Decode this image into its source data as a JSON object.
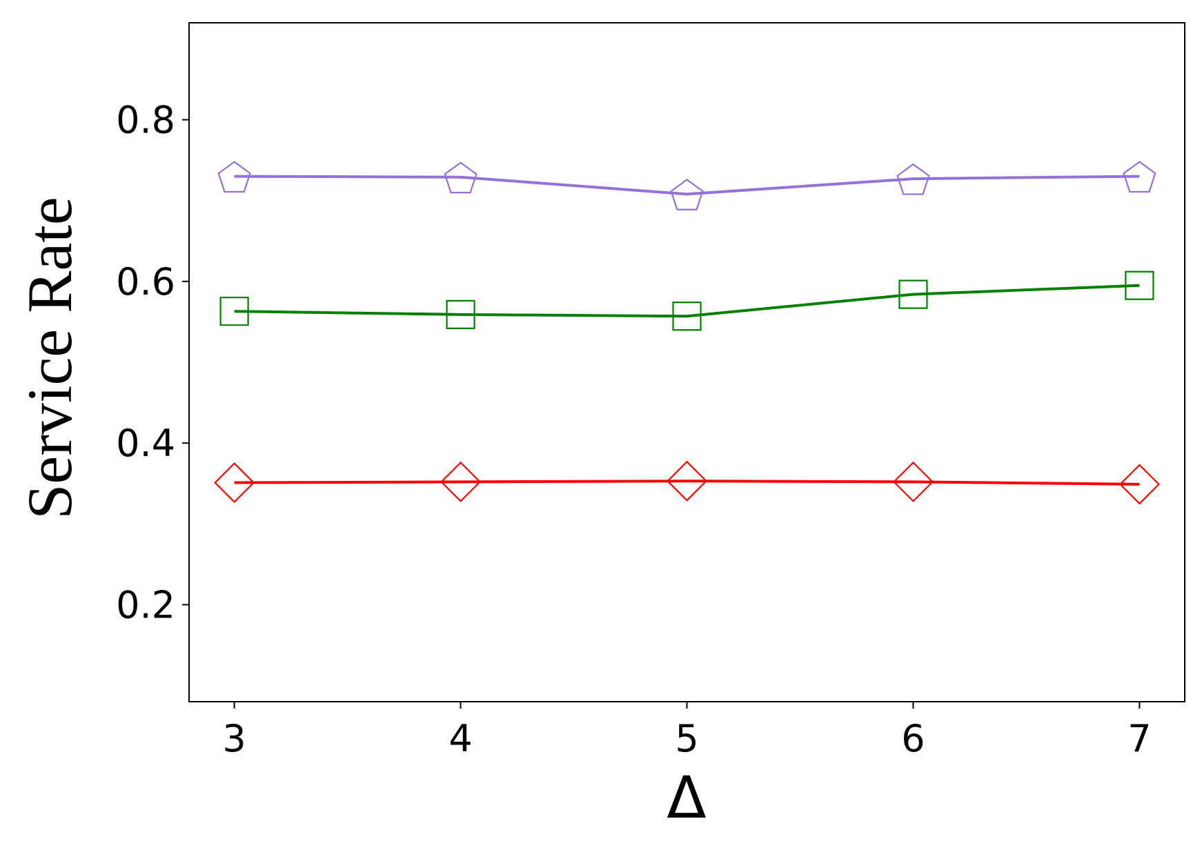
{
  "chart_data": {
    "type": "line",
    "x_label": "Δ",
    "y_label": "Service Rate",
    "x": [
      3,
      4,
      5,
      6,
      7
    ],
    "series": [
      {
        "color": "#9370db",
        "marker": "pentagon",
        "values": [
          0.73,
          0.729,
          0.708,
          0.727,
          0.73
        ]
      },
      {
        "color": "#008000",
        "marker": "square",
        "values": [
          0.563,
          0.559,
          0.557,
          0.584,
          0.595
        ]
      },
      {
        "color": "#ff0000",
        "marker": "diamond",
        "values": [
          0.351,
          0.352,
          0.353,
          0.352,
          0.349
        ]
      }
    ],
    "xlim": [
      2.8,
      7.2
    ],
    "xticks": [
      3,
      4,
      5,
      6,
      7
    ],
    "ylim": [
      0.08,
      0.92
    ],
    "yticks": [
      0.2,
      0.4,
      0.6,
      0.8
    ],
    "grid": false
  }
}
